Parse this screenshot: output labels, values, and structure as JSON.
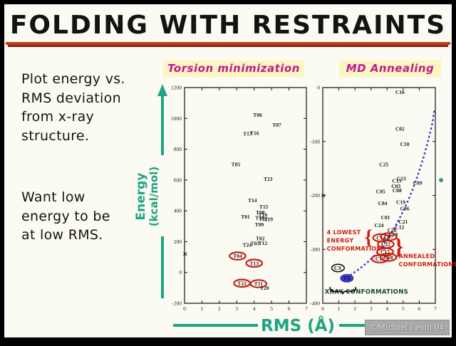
{
  "title": "FOLDING WITH RESTRAINTS",
  "notes": {
    "p1": "Plot energy vs.\nRMS deviation\nfrom x-ray\nstructure.",
    "p2": "Want low\nenergy to be\nat low RMS."
  },
  "axis": {
    "energy_line1": "Energy",
    "energy_line2": "(kcal/mol)",
    "rms_label": "RMS (Å)"
  },
  "watermark": {
    "text": "©Michael Levitt 04"
  },
  "colors": {
    "teal": "#1ea482",
    "magenta": "#c2188f",
    "badge_bg": "#fbf5c2",
    "red": "#cc1c10",
    "blue": "#3b3bc4",
    "dark_green": "#14432e",
    "underline": "#c24018",
    "ink": "#1a1a1a",
    "watermark_bg": "#a9a9a9",
    "watermark_text": "#d7d7d7"
  },
  "chart_data": [
    {
      "type": "scatter",
      "title": "Torsion minimization",
      "xlabel": "RMS (Å)",
      "ylabel": "Energy (kcal/mol)",
      "xlim": [
        0,
        7
      ],
      "ylim": [
        -200,
        1200
      ],
      "xticks": [
        0,
        1,
        2,
        3,
        4,
        5,
        6,
        7
      ],
      "yticks": [
        1200,
        1000,
        800,
        600,
        400,
        200,
        0,
        -200
      ],
      "grid": false,
      "xray_energy_marker": {
        "symbol": "x",
        "x": 0.03,
        "y": 120
      },
      "points": [
        {
          "label": "T06",
          "x": 4.2,
          "y": 1010
        },
        {
          "label": "T07",
          "x": 5.3,
          "y": 945
        },
        {
          "label": "T17",
          "x": 3.62,
          "y": 888
        },
        {
          "label": "T16",
          "x": 4.02,
          "y": 893
        },
        {
          "label": "T05",
          "x": 2.95,
          "y": 690
        },
        {
          "label": "T23",
          "x": 4.8,
          "y": 595
        },
        {
          "label": "T14",
          "x": 3.9,
          "y": 455
        },
        {
          "label": "T15",
          "x": 4.55,
          "y": 415
        },
        {
          "label": "T08",
          "x": 4.35,
          "y": 378
        },
        {
          "label": "T10",
          "x": 4.5,
          "y": 362
        },
        {
          "label": "T01",
          "x": 3.5,
          "y": 350
        },
        {
          "label": "T18",
          "x": 4.32,
          "y": 344
        },
        {
          "label": "T21",
          "x": 4.52,
          "y": 336
        },
        {
          "label": "T19",
          "x": 4.82,
          "y": 333
        },
        {
          "label": "T09",
          "x": 4.3,
          "y": 298
        },
        {
          "label": "T02",
          "x": 4.35,
          "y": 208
        },
        {
          "label": "T24",
          "x": 3.6,
          "y": 168
        },
        {
          "label": "T03",
          "x": 4.05,
          "y": 176
        },
        {
          "label": "T12",
          "x": 4.5,
          "y": 180
        },
        {
          "label": "T04",
          "x": 3.05,
          "y": 95,
          "circled": "red"
        },
        {
          "label": "T13",
          "x": 4.0,
          "y": 48,
          "circled": "red"
        },
        {
          "label": "T22",
          "x": 3.3,
          "y": -82,
          "circled": "red"
        },
        {
          "label": "T11",
          "x": 4.25,
          "y": -85,
          "circled": "red"
        },
        {
          "label": "T20",
          "x": 4.6,
          "y": -112
        }
      ]
    },
    {
      "type": "scatter",
      "title": "MD Annealing",
      "xlabel": "RMS (Å)",
      "ylabel": "Energy (kcal/mol)",
      "xlim": [
        0,
        7
      ],
      "ylim": [
        -400,
        0
      ],
      "xticks": [
        0,
        1,
        2,
        3,
        4,
        5,
        6,
        7
      ],
      "yticks": [
        0,
        -100,
        -200,
        -300,
        -400
      ],
      "grid": false,
      "xray_energy_marker": {
        "symbol": "x",
        "x": 0.03,
        "y": -200
      },
      "points": [
        {
          "label": "C16",
          "x": 4.8,
          "y": -12
        },
        {
          "label": "C02",
          "x": 4.8,
          "y": -80
        },
        {
          "label": "C10",
          "x": 5.1,
          "y": -108
        },
        {
          "label": "C25",
          "x": 3.8,
          "y": -146
        },
        {
          "label": "C15",
          "x": 4.6,
          "y": -176
        },
        {
          "label": "C23",
          "x": 4.88,
          "y": -172
        },
        {
          "label": "C09",
          "x": 5.9,
          "y": -180
        },
        {
          "label": "C05",
          "x": 3.6,
          "y": -196
        },
        {
          "label": "C03",
          "x": 4.55,
          "y": -186
        },
        {
          "label": "C08",
          "x": 4.62,
          "y": -194
        },
        {
          "label": "C04",
          "x": 3.72,
          "y": -218
        },
        {
          "label": "C19",
          "x": 4.85,
          "y": -216
        },
        {
          "label": "C06",
          "x": 5.1,
          "y": -228
        },
        {
          "label": "C01",
          "x": 3.9,
          "y": -244
        },
        {
          "label": "C24",
          "x": 3.5,
          "y": -259
        },
        {
          "label": "C21",
          "x": 5.0,
          "y": -252
        },
        {
          "label": "C12",
          "x": 4.78,
          "y": -262
        },
        {
          "label": "C20",
          "x": 4.3,
          "y": -268
        },
        {
          "label": "C13",
          "x": 4.38,
          "y": -276
        },
        {
          "label": "C14",
          "x": 3.62,
          "y": -282,
          "circled": "red"
        },
        {
          "label": "C07",
          "x": 4.1,
          "y": -280,
          "circled": "red"
        },
        {
          "label": "C22",
          "x": 3.92,
          "y": -294,
          "circled": "red"
        },
        {
          "label": "C17",
          "x": 3.88,
          "y": -308,
          "circled": "red"
        },
        {
          "label": "C11",
          "x": 3.55,
          "y": -321,
          "circled": "red"
        },
        {
          "label": "C18",
          "x": 4.08,
          "y": -318,
          "circled": "red"
        },
        {
          "label": "CX",
          "x": 0.95,
          "y": -338,
          "circled": "black"
        },
        {
          "label": "TX",
          "x": 1.5,
          "y": -357,
          "circled": "blue"
        }
      ],
      "curve": {
        "name": "annealing-trend-dotted",
        "points": [
          [
            1.3,
            -356
          ],
          [
            1.7,
            -348
          ],
          [
            2.1,
            -340
          ],
          [
            2.5,
            -331
          ],
          [
            2.9,
            -321
          ],
          [
            3.2,
            -312
          ],
          [
            3.5,
            -302
          ],
          [
            3.8,
            -291
          ],
          [
            4.05,
            -280
          ],
          [
            4.3,
            -268
          ],
          [
            4.55,
            -255
          ],
          [
            4.8,
            -241
          ],
          [
            5.05,
            -226
          ],
          [
            5.3,
            -210
          ],
          [
            5.55,
            -192
          ],
          [
            5.8,
            -172
          ],
          [
            6.05,
            -150
          ],
          [
            6.3,
            -126
          ],
          [
            6.55,
            -99
          ],
          [
            6.8,
            -68
          ],
          [
            6.95,
            -40
          ]
        ]
      },
      "annotations": [
        {
          "lines": [
            "4 LOWEST",
            "ENERGY",
            "CONFORMATIONS"
          ],
          "x": 0.25,
          "y": -272,
          "color": "red",
          "size": 8,
          "name": "annotation-4-lowest-energy"
        },
        {
          "lines": [
            "ANNEALED",
            "CONFORMATIONS"
          ],
          "x": 4.72,
          "y": -316,
          "color": "red",
          "size": 8,
          "name": "annotation-annealed"
        },
        {
          "lines": [
            "XRAY CONFORMATIONS"
          ],
          "x": 0.12,
          "y": -382,
          "color": "green",
          "size": 8.5,
          "name": "annotation-xray-conformations"
        }
      ],
      "braces": [
        {
          "glyph": "{",
          "x": 2.6,
          "y": -290,
          "size": 28,
          "color": "red"
        },
        {
          "glyph": "}",
          "x": 4.45,
          "y": -308,
          "size": 32,
          "color": "red"
        }
      ],
      "underbrace": {
        "x1": 0.45,
        "x2": 2.05,
        "y": -370
      }
    }
  ]
}
